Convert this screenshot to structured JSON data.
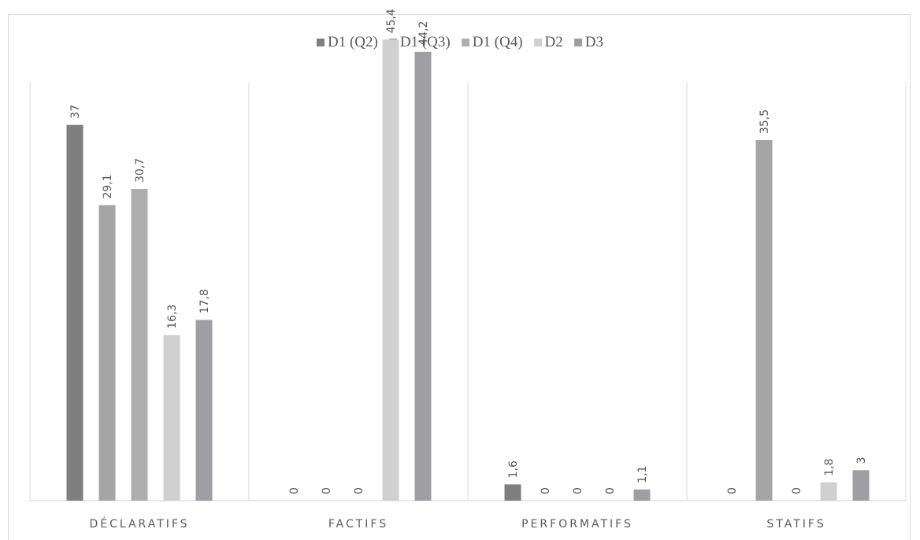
{
  "chart_data": {
    "type": "bar",
    "categories": [
      "DÉCLARATIFS",
      "FACTIFS",
      "PERFORMATIFS",
      "STATIFS"
    ],
    "series": [
      {
        "name": "D1 (Q2)",
        "color": "#7f7f7f",
        "values": [
          37,
          0,
          1.6,
          0
        ],
        "labels": [
          "37",
          "0",
          "1,6",
          "0"
        ]
      },
      {
        "name": "D1 (Q3)",
        "color": "#a5a5a5",
        "values": [
          29.1,
          0,
          0,
          35.5
        ],
        "labels": [
          "29,1",
          "0",
          "0",
          "35,5"
        ]
      },
      {
        "name": "D1 (Q4)",
        "color": "#aeaeae",
        "values": [
          30.7,
          0,
          0,
          0
        ],
        "labels": [
          "30,7",
          "0",
          "0",
          "0"
        ]
      },
      {
        "name": "D2",
        "color": "#d0d0d0",
        "values": [
          16.3,
          45.4,
          0,
          1.8
        ],
        "labels": [
          "16,3",
          "45,4",
          "0",
          "1,8"
        ]
      },
      {
        "name": "D3",
        "color": "#9f9fa3",
        "values": [
          17.8,
          44.2,
          1.1,
          3
        ],
        "labels": [
          "17,8",
          "44,2",
          "1,1",
          "3"
        ]
      }
    ],
    "ylim": [
      0,
      50
    ],
    "grid": "vertical category separators",
    "legend": "top-center"
  }
}
